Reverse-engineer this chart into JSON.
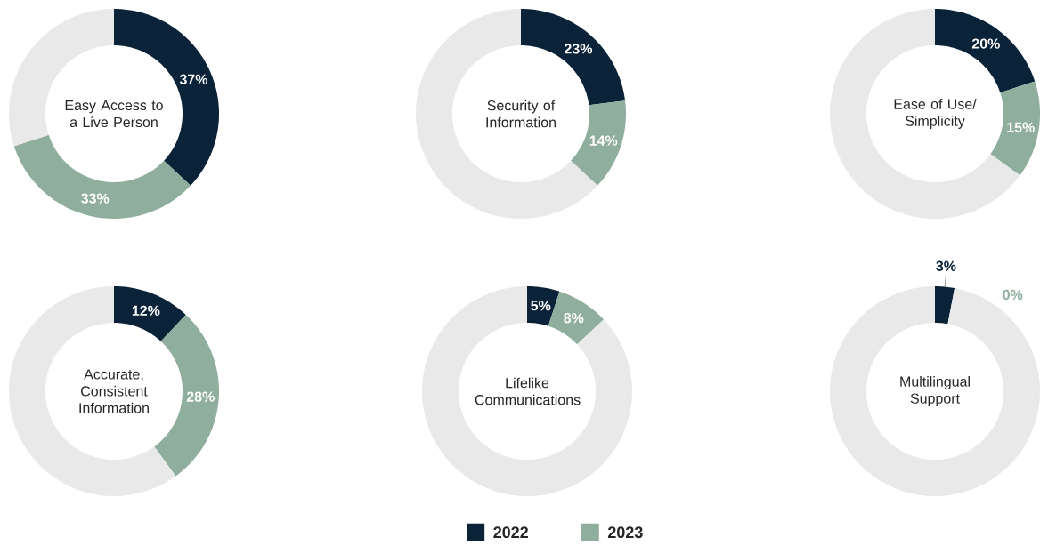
{
  "chart_data": [
    {
      "type": "donut",
      "title": "Easy Access to a Live Person",
      "categories": [
        null,
        null,
        null
      ],
      "values": [
        37,
        33,
        30
      ],
      "colors": [
        "#0b2338",
        "#8fae9e",
        "#e9e9e9"
      ],
      "value_labels": [
        "37%",
        "33%",
        null
      ]
    },
    {
      "type": "donut",
      "title": "Security of Information",
      "categories": [
        null,
        null,
        null
      ],
      "values": [
        23,
        14,
        63
      ],
      "colors": [
        "#0b2338",
        "#8fae9e",
        "#e9e9e9"
      ],
      "value_labels": [
        "23%",
        "14%",
        null
      ]
    },
    {
      "type": "donut",
      "title": "Ease of Use/ Simplicity",
      "categories": [
        null,
        null,
        null
      ],
      "values": [
        20,
        15,
        65
      ],
      "colors": [
        "#0b2338",
        "#8fae9e",
        "#e9e9e9"
      ],
      "value_labels": [
        "20%",
        "15%",
        null
      ]
    },
    {
      "type": "donut",
      "title": "Accurate, Consistent Information",
      "categories": [
        null,
        null,
        null
      ],
      "values": [
        12,
        28,
        60
      ],
      "colors": [
        "#0b2338",
        "#8fae9e",
        "#e9e9e9"
      ],
      "value_labels": [
        "12%",
        "28%",
        null
      ]
    },
    {
      "type": "donut",
      "title": "Lifelike Communications",
      "categories": [
        "2022",
        "2023",
        null
      ],
      "values": [
        5,
        8,
        87
      ],
      "colors": [
        "#0b2338",
        "#8fae9e",
        "#e9e9e9"
      ],
      "value_labels": [
        "5%",
        "8%",
        null
      ],
      "legend": "bottom"
    },
    {
      "type": "donut",
      "title": "Multilingual Support",
      "categories": [
        null,
        null,
        null
      ],
      "values": [
        3,
        0,
        97
      ],
      "colors": [
        "#0b2338",
        "#8fae9e",
        "#e9e9e9"
      ],
      "value_labels": [
        "3%",
        "0%",
        null
      ]
    }
  ]
}
